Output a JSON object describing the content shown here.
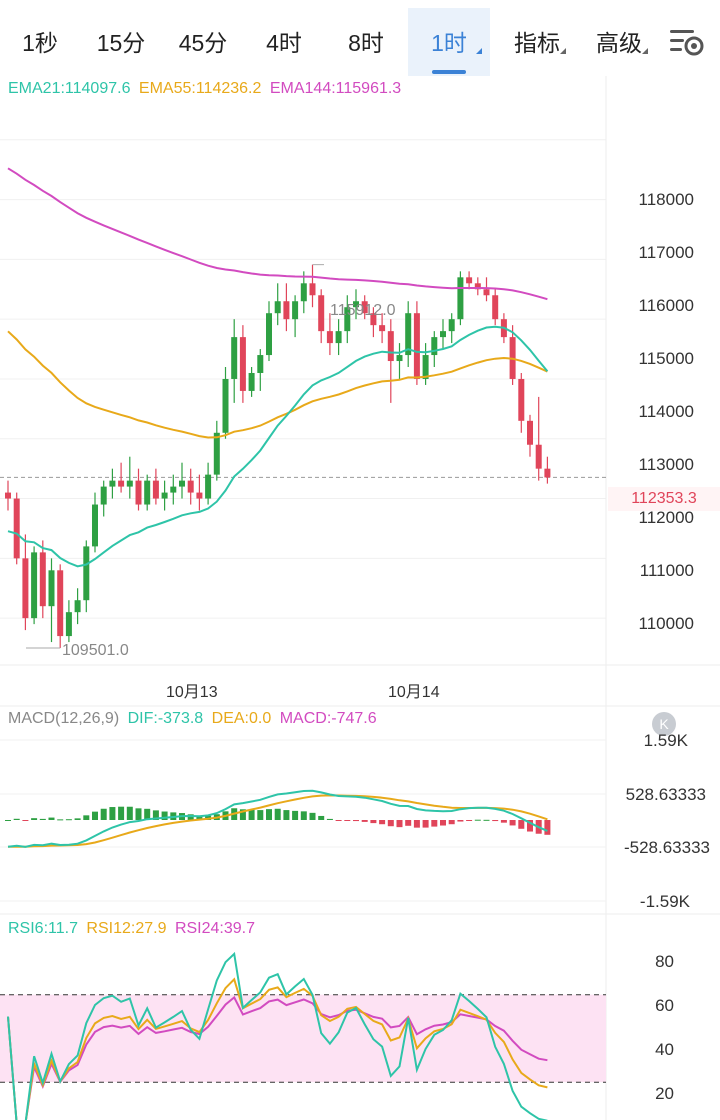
{
  "tabs": [
    {
      "label": "1秒",
      "active": false,
      "dropdown": false
    },
    {
      "label": "15分",
      "active": false,
      "dropdown": false
    },
    {
      "label": "45分",
      "active": false,
      "dropdown": false
    },
    {
      "label": "4时",
      "active": false,
      "dropdown": false
    },
    {
      "label": "8时",
      "active": false,
      "dropdown": false
    },
    {
      "label": "1时",
      "active": true,
      "dropdown": true
    },
    {
      "label": "指标",
      "active": false,
      "dropdown": true
    },
    {
      "label": "高级",
      "active": false,
      "dropdown": true
    }
  ],
  "settings_icon": "chart-settings-icon",
  "ema_legend": {
    "ema21": "EMA21:114097.6",
    "ema55": "EMA55:114236.2",
    "ema144": "EMA144:115961.3"
  },
  "price_axis": [
    "118000",
    "117000",
    "116000",
    "115000",
    "114000",
    "113000",
    "112000",
    "111000",
    "110000"
  ],
  "dates": [
    "10月13",
    "10月14"
  ],
  "high_label": "115912.0",
  "low_label": "109501.0",
  "last_price": "112353.3",
  "macd_legend": {
    "params": "MACD(12,26,9)",
    "dif": "DIF:-373.8",
    "dea": "DEA:0.0",
    "macd": "MACD:-747.6"
  },
  "macd_axis": [
    "1.59K",
    "528.63333",
    "-528.63333",
    "-1.59K"
  ],
  "collapse_icon": "collapse-k-icon",
  "rsi_legend": {
    "rsi6": "RSI6:11.7",
    "rsi12": "RSI12:27.9",
    "rsi24": "RSI24:39.7"
  },
  "rsi_axis": [
    "80",
    "60",
    "40",
    "20"
  ],
  "colors": {
    "up": "#2ea043",
    "down": "#e0455a",
    "ema21": "#2ec4a8",
    "ema55": "#e8a91a",
    "ema144": "#d24bc0",
    "accent": "#3b82d6",
    "rsi_band": "#fde2f3"
  },
  "chart_data": {
    "type": "candlestick",
    "interval": "1h",
    "ohlc": [
      [
        112100,
        112300,
        111800,
        112000
      ],
      [
        112000,
        112100,
        110900,
        111000
      ],
      [
        111000,
        111400,
        109800,
        110000
      ],
      [
        110000,
        111200,
        109900,
        111100
      ],
      [
        111100,
        111300,
        110000,
        110200
      ],
      [
        110200,
        111000,
        109600,
        110800
      ],
      [
        110800,
        110900,
        109501,
        109700
      ],
      [
        109700,
        110300,
        109600,
        110100
      ],
      [
        110100,
        110500,
        109900,
        110300
      ],
      [
        110300,
        111300,
        110100,
        111200
      ],
      [
        111200,
        112100,
        111100,
        111900
      ],
      [
        111900,
        112300,
        111700,
        112200
      ],
      [
        112200,
        112500,
        112000,
        112300
      ],
      [
        112300,
        112600,
        112100,
        112200
      ],
      [
        112200,
        112700,
        112000,
        112300
      ],
      [
        112300,
        112500,
        111800,
        111900
      ],
      [
        111900,
        112400,
        111800,
        112300
      ],
      [
        112300,
        112500,
        111900,
        112000
      ],
      [
        112000,
        112300,
        111800,
        112100
      ],
      [
        112100,
        112400,
        111900,
        112200
      ],
      [
        112200,
        112600,
        112000,
        112300
      ],
      [
        112300,
        112500,
        111900,
        112100
      ],
      [
        112100,
        112400,
        111800,
        112000
      ],
      [
        112000,
        112600,
        111900,
        112400
      ],
      [
        112400,
        113300,
        112300,
        113100
      ],
      [
        113100,
        114200,
        113000,
        114000
      ],
      [
        114000,
        115000,
        113600,
        114700
      ],
      [
        114700,
        114900,
        113600,
        113800
      ],
      [
        113800,
        114200,
        113700,
        114100
      ],
      [
        114100,
        114500,
        113800,
        114400
      ],
      [
        114400,
        115300,
        114300,
        115100
      ],
      [
        115100,
        115600,
        114900,
        115300
      ],
      [
        115300,
        115600,
        114800,
        115000
      ],
      [
        115000,
        115400,
        114700,
        115300
      ],
      [
        115300,
        115800,
        115100,
        115600
      ],
      [
        115600,
        115912,
        115200,
        115400
      ],
      [
        115400,
        115500,
        114600,
        114800
      ],
      [
        114800,
        115100,
        114400,
        114600
      ],
      [
        114600,
        115000,
        114400,
        114800
      ],
      [
        114800,
        115400,
        114600,
        115200
      ],
      [
        115200,
        115500,
        115000,
        115300
      ],
      [
        115300,
        115400,
        115000,
        115100
      ],
      [
        115100,
        115200,
        114700,
        114900
      ],
      [
        114900,
        115100,
        114600,
        114800
      ],
      [
        114800,
        115000,
        113600,
        114300
      ],
      [
        114300,
        114600,
        114000,
        114400
      ],
      [
        114400,
        115300,
        114200,
        115100
      ],
      [
        115100,
        115300,
        113900,
        114000
      ],
      [
        114000,
        114600,
        113900,
        114400
      ],
      [
        114400,
        114800,
        114200,
        114700
      ],
      [
        114700,
        115000,
        114500,
        114800
      ],
      [
        114800,
        115100,
        114600,
        115000
      ],
      [
        115000,
        115800,
        114900,
        115700
      ],
      [
        115700,
        115800,
        115500,
        115600
      ],
      [
        115600,
        115700,
        115400,
        115500
      ],
      [
        115500,
        115700,
        115300,
        115400
      ],
      [
        115400,
        115500,
        114900,
        115000
      ],
      [
        115000,
        115100,
        114600,
        114700
      ],
      [
        114700,
        114900,
        113900,
        114000
      ],
      [
        114000,
        114100,
        113100,
        113300
      ],
      [
        113300,
        113400,
        112700,
        112900
      ],
      [
        112900,
        113700,
        112300,
        112500
      ],
      [
        112500,
        112700,
        112250,
        112353.3
      ]
    ],
    "ema21_start": 111400,
    "ema21_end": 114097.6,
    "ema55_end": 114236.2,
    "ema144_end": 115961.3,
    "price_range": [
      109300,
      119000
    ],
    "macd": {
      "dif_end": -373.8,
      "dea_end": 0.0,
      "macd_end": -747.6,
      "range": [
        -1590,
        1590
      ]
    },
    "rsi": {
      "rsi6_end": 11.7,
      "rsi12_end": 27.9,
      "rsi24_end": 39.7,
      "range": [
        15,
        95
      ],
      "upper_band": 70,
      "lower_band": 30
    }
  }
}
